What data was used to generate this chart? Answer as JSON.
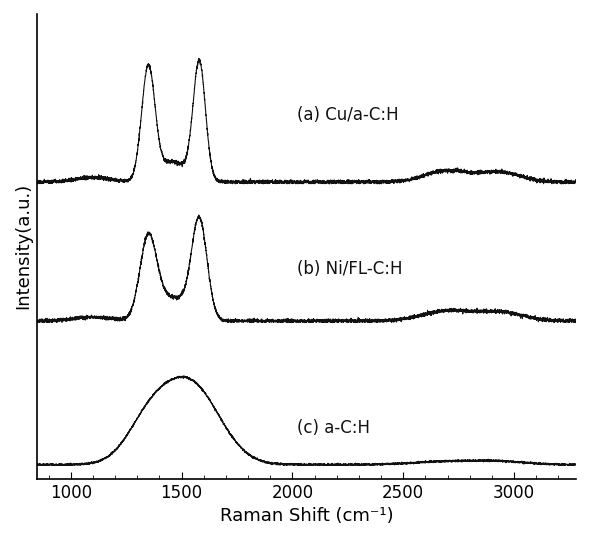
{
  "xlabel": "Raman Shift (cm⁻¹)",
  "ylabel": "Intensity(a.u.)",
  "xlim": [
    850,
    3280
  ],
  "xticks": [
    1000,
    1500,
    2000,
    2500,
    3000
  ],
  "labels": [
    "(a) Cu/a-C:H",
    "(b) Ni/FL-C:H",
    "(c) a-C:H"
  ],
  "line_color": "#111111",
  "background_color": "#ffffff",
  "axis_fontsize": 13,
  "label_fontsize": 12,
  "tick_fontsize": 12
}
